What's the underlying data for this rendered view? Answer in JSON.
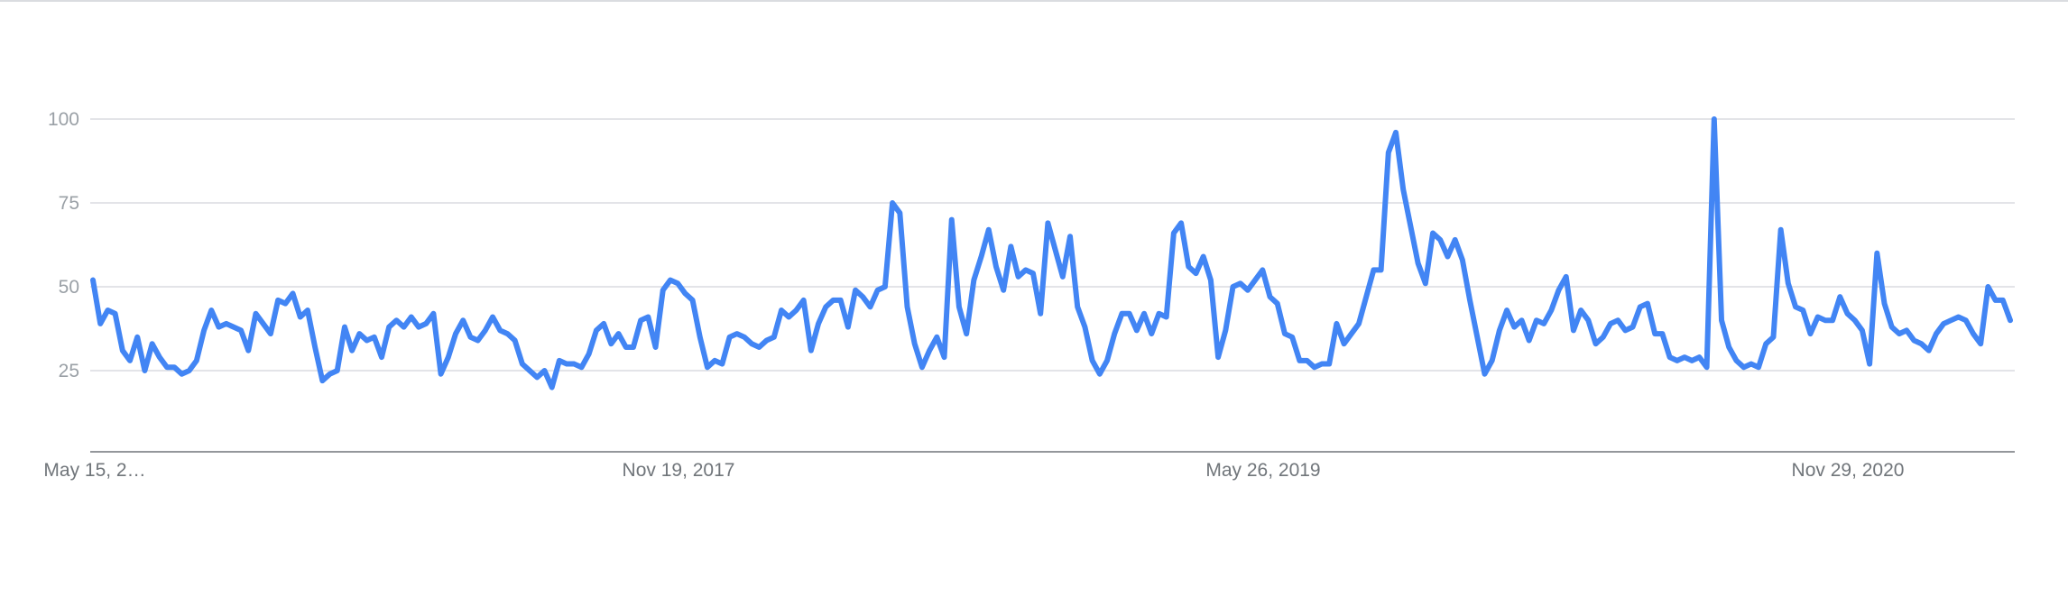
{
  "chart_data": {
    "type": "line",
    "title": "",
    "xlabel": "",
    "ylabel": "",
    "ylim": [
      0,
      100
    ],
    "yticks": [
      25,
      50,
      75,
      100
    ],
    "x_tick_labels": [
      "May 15, 2…",
      "Nov 19, 2017",
      "May 26, 2019",
      "Nov 29, 2020"
    ],
    "grid": true,
    "legend": "none",
    "series": [
      {
        "color": "#4285f4",
        "values": [
          52,
          39,
          43,
          42,
          31,
          28,
          35,
          25,
          33,
          29,
          26,
          26,
          24,
          25,
          28,
          37,
          43,
          38,
          39,
          38,
          37,
          31,
          42,
          39,
          36,
          46,
          45,
          48,
          41,
          43,
          32,
          22,
          24,
          25,
          38,
          31,
          36,
          34,
          35,
          29,
          38,
          40,
          38,
          41,
          38,
          39,
          42,
          24,
          29,
          36,
          40,
          35,
          34,
          37,
          41,
          37,
          36,
          34,
          27,
          25,
          23,
          25,
          20,
          28,
          27,
          27,
          26,
          30,
          37,
          39,
          33,
          36,
          32,
          32,
          40,
          41,
          32,
          49,
          52,
          51,
          48,
          46,
          35,
          26,
          28,
          27,
          35,
          36,
          35,
          33,
          32,
          34,
          35,
          43,
          41,
          43,
          46,
          31,
          39,
          44,
          46,
          46,
          38,
          49,
          47,
          44,
          49,
          50,
          75,
          72,
          44,
          33,
          26,
          31,
          35,
          29,
          70,
          44,
          36,
          52,
          59,
          67,
          56,
          49,
          62,
          53,
          55,
          54,
          42,
          69,
          61,
          53,
          65,
          44,
          38,
          28,
          24,
          28,
          36,
          42,
          42,
          37,
          42,
          36,
          42,
          41,
          66,
          69,
          56,
          54,
          59,
          52,
          29,
          37,
          50,
          51,
          49,
          52,
          55,
          47,
          45,
          36,
          35,
          28,
          28,
          26,
          27,
          27,
          39,
          33,
          36,
          39,
          47,
          55,
          55,
          90,
          96,
          79,
          68,
          57,
          51,
          66,
          64,
          59,
          64,
          58,
          46,
          35,
          24,
          28,
          37,
          43,
          38,
          40,
          34,
          40,
          39,
          43,
          49,
          53,
          37,
          43,
          40,
          33,
          35,
          39,
          40,
          37,
          38,
          44,
          45,
          36,
          36,
          29,
          28,
          29,
          28,
          29,
          26,
          100,
          40,
          32,
          28,
          26,
          27,
          26,
          33,
          35,
          67,
          51,
          44,
          43,
          36,
          41,
          40,
          40,
          47,
          42,
          40,
          37,
          27,
          60,
          45,
          38,
          36,
          37,
          34,
          33,
          31,
          36,
          39,
          40,
          41,
          40,
          36,
          33,
          50,
          46,
          46,
          40
        ]
      }
    ]
  }
}
